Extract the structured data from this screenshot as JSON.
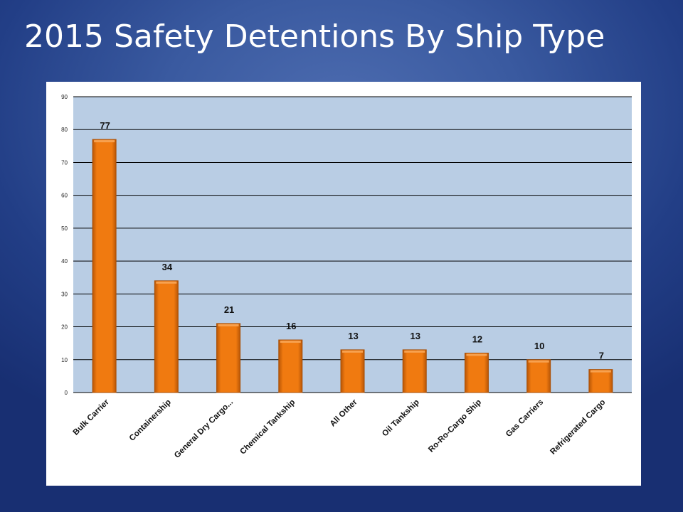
{
  "slide": {
    "title": "2015 Safety Detentions By Ship Type"
  },
  "colors": {
    "bar_fill": "#f07a10",
    "bar_edge": "#a84e05",
    "plot_background": "#b9cde4",
    "gridline": "#000000"
  },
  "chart_data": {
    "type": "bar",
    "title": "",
    "xlabel": "",
    "ylabel": "",
    "categories": [
      "Bulk Carrier",
      "Containership",
      "General Dry Cargo...",
      "Chemical Tankship",
      "All Other",
      "Oil Tankship",
      "Ro-Ro-Cargo Ship",
      "Gas Carriers",
      "Refrigerated Cargo"
    ],
    "values": [
      77,
      34,
      21,
      16,
      13,
      13,
      12,
      10,
      7
    ],
    "data_labels": [
      "77",
      "34",
      "21",
      "16",
      "13",
      "13",
      "12",
      "10",
      "7"
    ],
    "ylim": [
      0,
      90
    ],
    "yticks": [
      0,
      10,
      20,
      30,
      40,
      50,
      60,
      70,
      80,
      90
    ],
    "grid": true,
    "legend": "none"
  }
}
